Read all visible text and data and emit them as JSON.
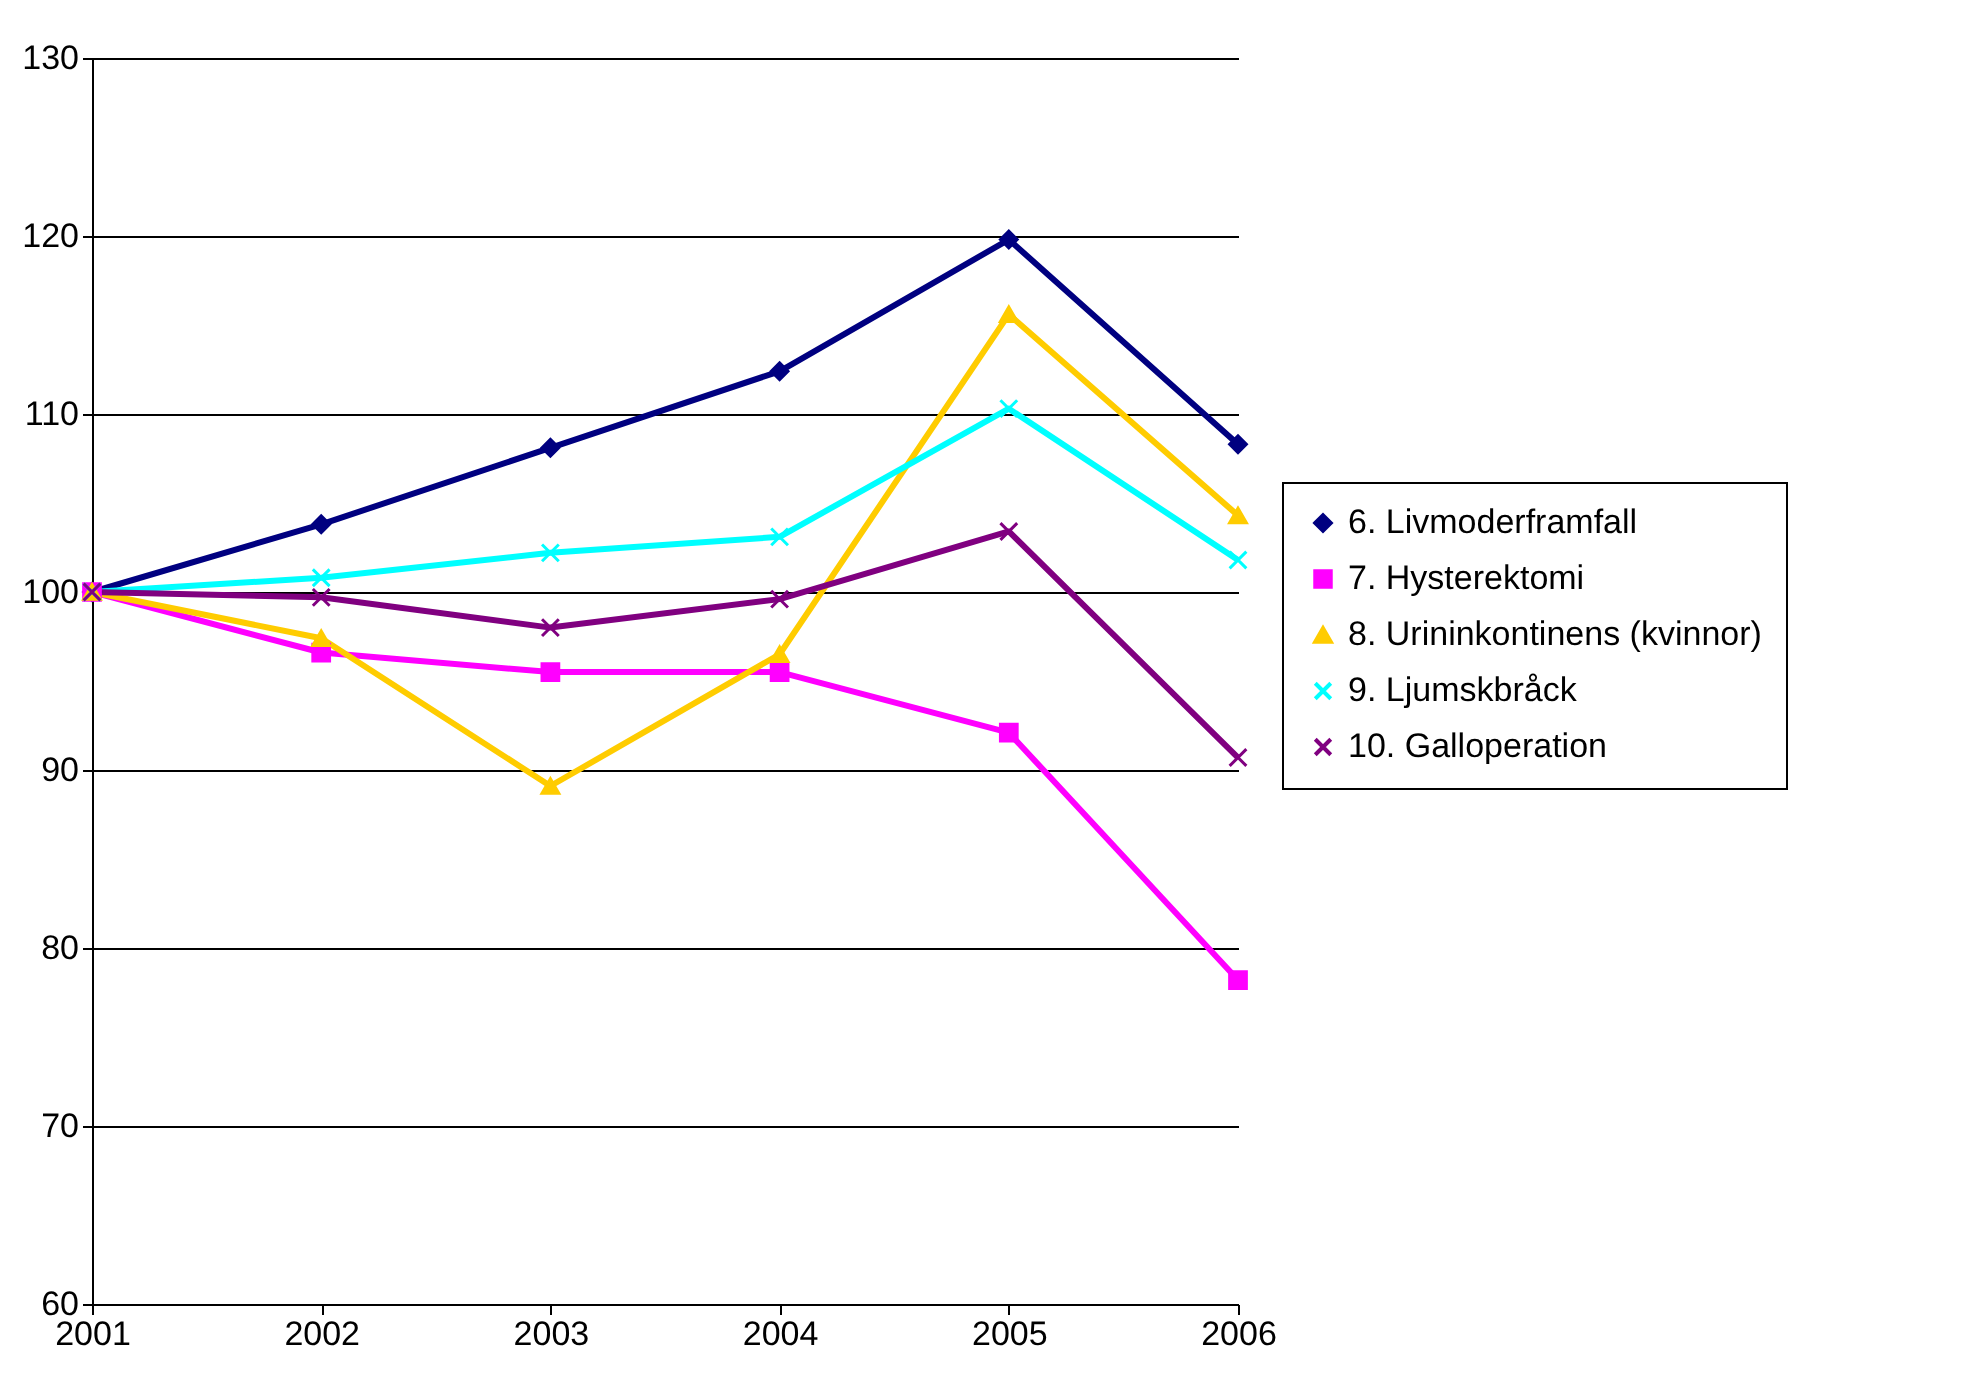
{
  "chart_data": {
    "type": "line",
    "x": [
      2001,
      2002,
      2003,
      2004,
      2005,
      2006
    ],
    "xlim": [
      2001,
      2006
    ],
    "xticks": [
      2001,
      2002,
      2003,
      2004,
      2005,
      2006
    ],
    "ylim": [
      60,
      130
    ],
    "yticks": [
      60,
      70,
      80,
      90,
      100,
      110,
      120,
      130
    ],
    "grid": "y",
    "legend": "right",
    "series": [
      {
        "name": "6. Livmoderframfall",
        "color": "#000080",
        "marker": "diamond",
        "values": [
          100,
          103.8,
          108.1,
          112.4,
          119.8,
          108.3
        ]
      },
      {
        "name": "7. Hysterektomi",
        "color": "#ff00ff",
        "marker": "square",
        "values": [
          100,
          96.6,
          95.5,
          95.5,
          92.1,
          78.2
        ]
      },
      {
        "name": "8. Urininkontinens (kvinnor)",
        "color": "#ffcc00",
        "marker": "triangle",
        "values": [
          100,
          97.4,
          89.1,
          96.5,
          115.6,
          104.3
        ]
      },
      {
        "name": "9. Ljumskbråck",
        "color": "#00ffff",
        "marker": "cross",
        "values": [
          100,
          100.8,
          102.2,
          103.1,
          110.3,
          101.8
        ]
      },
      {
        "name": "10. Galloperation",
        "color": "#800080",
        "marker": "cross",
        "values": [
          100,
          99.7,
          98.0,
          99.6,
          103.4,
          90.7
        ]
      }
    ]
  }
}
